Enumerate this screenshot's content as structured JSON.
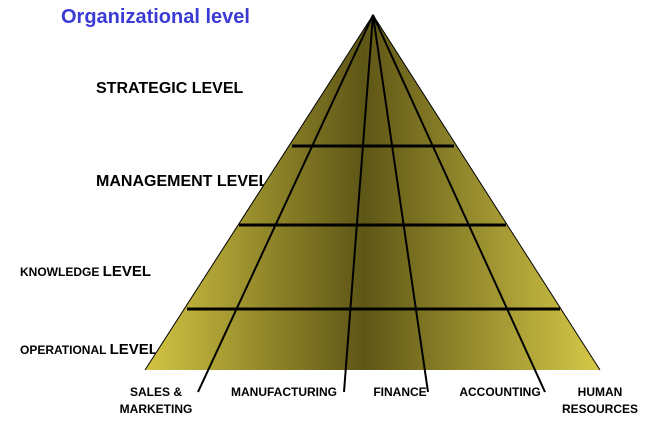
{
  "title": "Organizational level",
  "levels": [
    {
      "prefix": "",
      "label": "STRATEGIC LEVEL"
    },
    {
      "prefix": "",
      "label": "MANAGEMENT  LEVEL"
    },
    {
      "prefix": "KNOWLEDGE ",
      "label": "LEVEL"
    },
    {
      "prefix": "OPERATIONAL ",
      "label": "LEVEL"
    }
  ],
  "departments": [
    {
      "line1": "SALES &",
      "line2": "MARKETING"
    },
    {
      "line1": "MANUFACTURING",
      "line2": ""
    },
    {
      "line1": "FINANCE",
      "line2": ""
    },
    {
      "line1": "ACCOUNTING",
      "line2": ""
    },
    {
      "line1": "HUMAN",
      "line2": "RESOURCES"
    }
  ],
  "colors": {
    "title": "#3b3bd6",
    "pyramid_light": "#d2c443",
    "pyramid_dark": "#5e5616",
    "lines": "#000000"
  }
}
